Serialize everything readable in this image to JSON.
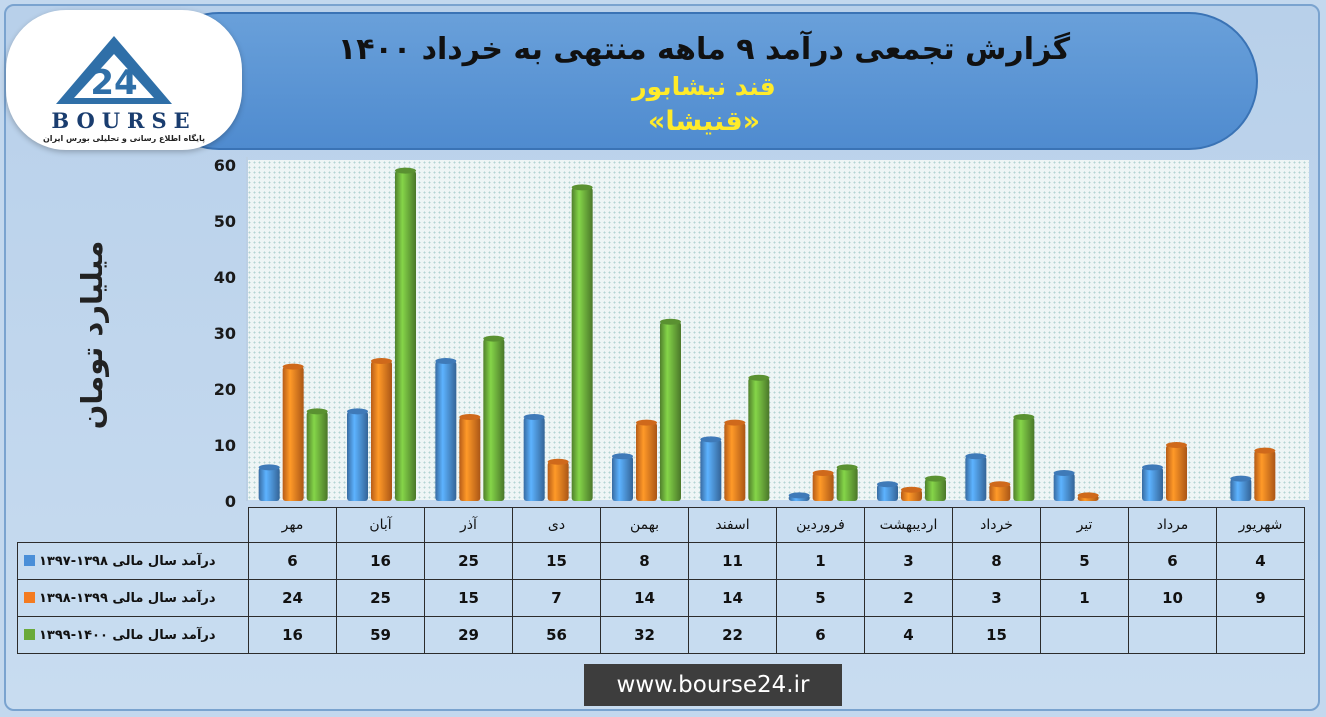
{
  "header": {
    "title": "گزارش تجمعی درآمد ۹ ماهه منتهی به خرداد ۱۴۰۰",
    "subtitle_company": "قند نیشابور",
    "subtitle_symbol": "«قنیشا»"
  },
  "logo": {
    "word": "BOURSE",
    "mark_text": "24",
    "tagline": "پایگاه اطلاع رسانی و تحلیلی بورس ایران"
  },
  "website": "www.bourse24.ir",
  "colors": {
    "series_1": "#4a8fd8",
    "series_2": "#f47b20",
    "series_3": "#6aaa3a",
    "header": "#5b95d6",
    "title_yellow": "#ffeb2a"
  },
  "chart_data": {
    "type": "bar",
    "ylabel": "میلیارد تومان",
    "ylim": [
      0,
      60
    ],
    "yticks": [
      0,
      10,
      20,
      30,
      40,
      50,
      60
    ],
    "grid": false,
    "legend": "table-left",
    "categories": [
      "مهر",
      "آبان",
      "آذر",
      "دی",
      "بهمن",
      "اسفند",
      "فروردین",
      "اردیبهشت",
      "خرداد",
      "تیر",
      "مرداد",
      "شهریور"
    ],
    "series": [
      {
        "name": "درآمد  سال مالی ۱۳۹۸-۱۳۹۷",
        "color": "#4a8fd8",
        "values": [
          6,
          16,
          25,
          15,
          8,
          11,
          1,
          3,
          8,
          5,
          6,
          4
        ]
      },
      {
        "name": "درآمد  سال مالی ۱۳۹۹-۱۳۹۸",
        "color": "#f47b20",
        "values": [
          24,
          25,
          15,
          7,
          14,
          14,
          5,
          2,
          3,
          1,
          10,
          9
        ]
      },
      {
        "name": "درآمد  سال مالی ۱۴۰۰-۱۳۹۹",
        "color": "#6aaa3a",
        "values": [
          16,
          59,
          29,
          56,
          32,
          22,
          6,
          4,
          15,
          null,
          null,
          null
        ]
      }
    ]
  }
}
